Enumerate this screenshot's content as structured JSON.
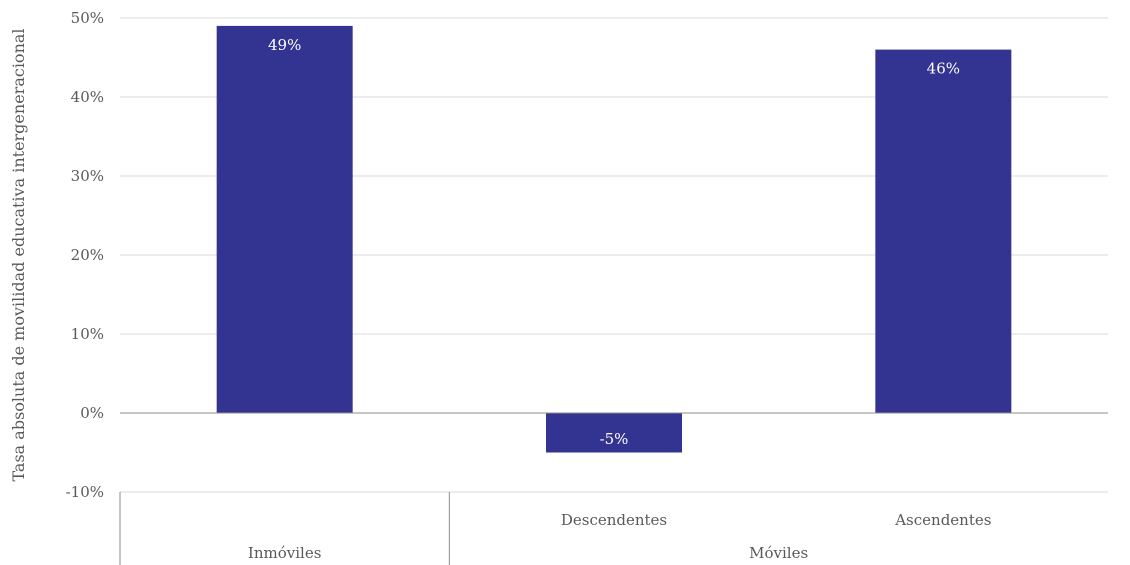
{
  "chart_data": {
    "type": "bar",
    "ylabel": "Tasa absoluta de movilidad educativa intergeneracional",
    "ylim": [
      -10,
      50
    ],
    "yticks": [
      -10,
      0,
      10,
      20,
      30,
      40,
      50
    ],
    "ytick_labels": [
      "-10%",
      "0%",
      "10%",
      "20%",
      "30%",
      "40%",
      "50%"
    ],
    "categories": [
      "",
      "Descendentes",
      "Ascendentes"
    ],
    "groups": [
      {
        "label": "Inmóviles",
        "span": 1
      },
      {
        "label": "Móviles",
        "span": 2
      }
    ],
    "values": [
      49,
      -5,
      46
    ],
    "data_labels": [
      "49%",
      "-5%",
      "46%"
    ],
    "bar_color": "#333391",
    "grid": true,
    "legend": "none"
  }
}
